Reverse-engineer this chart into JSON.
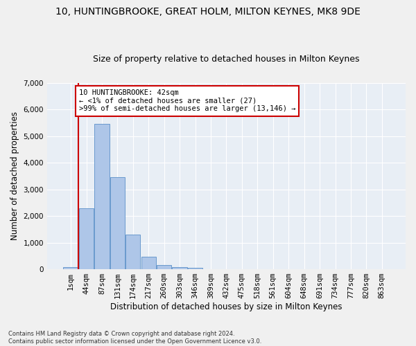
{
  "title_line1": "10, HUNTINGBROOKE, GREAT HOLM, MILTON KEYNES, MK8 9DE",
  "title_line2": "Size of property relative to detached houses in Milton Keynes",
  "xlabel": "Distribution of detached houses by size in Milton Keynes",
  "ylabel": "Number of detached properties",
  "footnote": "Contains HM Land Registry data © Crown copyright and database right 2024.\nContains public sector information licensed under the Open Government Licence v3.0.",
  "bar_labels": [
    "1sqm",
    "44sqm",
    "87sqm",
    "131sqm",
    "174sqm",
    "217sqm",
    "260sqm",
    "303sqm",
    "346sqm",
    "389sqm",
    "432sqm",
    "475sqm",
    "518sqm",
    "561sqm",
    "604sqm",
    "648sqm",
    "691sqm",
    "734sqm",
    "777sqm",
    "820sqm",
    "863sqm"
  ],
  "bar_values": [
    80,
    2280,
    5450,
    3450,
    1310,
    470,
    170,
    90,
    50,
    0,
    0,
    0,
    0,
    0,
    0,
    0,
    0,
    0,
    0,
    0,
    0
  ],
  "bar_color": "#aec6e8",
  "bar_edge_color": "#5a90c8",
  "vline_color": "#cc0000",
  "annotation_text": "10 HUNTINGBROOKE: 42sqm\n← <1% of detached houses are smaller (27)\n>99% of semi-detached houses are larger (13,146) →",
  "annotation_box_color": "#ffffff",
  "annotation_box_edge": "#cc0000",
  "ylim": [
    0,
    7000
  ],
  "yticks": [
    0,
    1000,
    2000,
    3000,
    4000,
    5000,
    6000,
    7000
  ],
  "bg_color": "#e8eef5",
  "grid_color": "#ffffff",
  "fig_bg_color": "#f0f0f0",
  "title_fontsize": 10,
  "subtitle_fontsize": 9,
  "axis_label_fontsize": 8.5,
  "tick_fontsize": 7.5,
  "annotation_fontsize": 7.5,
  "footnote_fontsize": 6.0
}
